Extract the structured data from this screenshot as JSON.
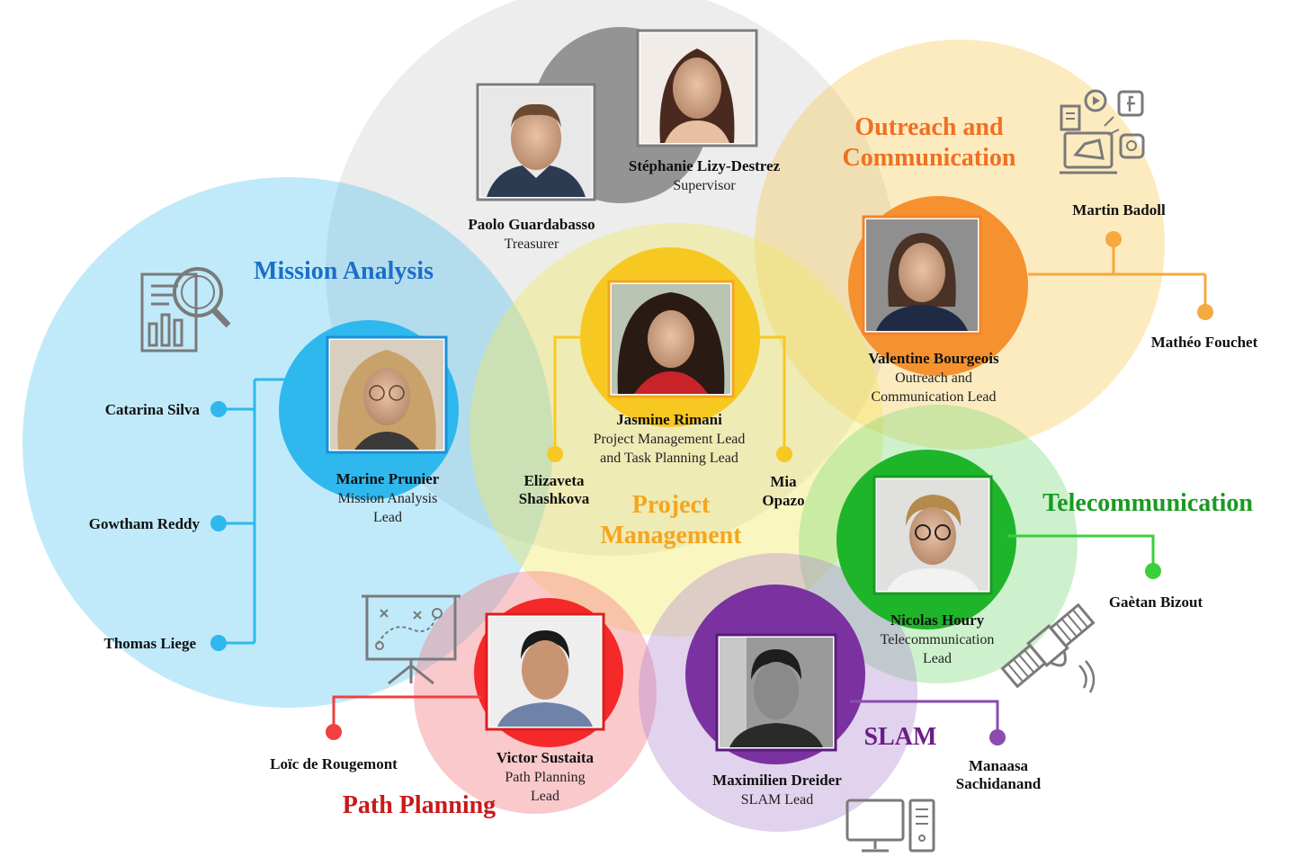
{
  "colors": {
    "mission": "#2fb8ee",
    "outreach": "#f5922f",
    "project": "#f8c822",
    "telecom": "#1fb52a",
    "path": "#f5292a",
    "slam": "#7b32a0",
    "supervisor": "#808080",
    "icon": "#7a7a7a"
  },
  "teams": {
    "mission": {
      "label": "Mission Analysis",
      "color": "#1a6fc9"
    },
    "outreach": {
      "label_line1": "Outreach and",
      "label_line2": "Communication",
      "color": "#f07020"
    },
    "project": {
      "label_line1": "Project",
      "label_line2": "Management",
      "color": "#f5a51e"
    },
    "telecom": {
      "label": "Telecommunication",
      "color": "#1a9a22"
    },
    "path": {
      "label": "Path Planning",
      "color": "#c81a1a"
    },
    "slam": {
      "label": "SLAM",
      "color": "#6a1d86"
    }
  },
  "leads": {
    "supervisor": {
      "name": "Stéphanie Lizy-Destrez",
      "role": "Supervisor"
    },
    "treasurer": {
      "name": "Paolo Guardabasso",
      "role": "Treasurer"
    },
    "mission": {
      "name": "Marine Prunier",
      "role_line1": "Mission Analysis",
      "role_line2": "Lead"
    },
    "project": {
      "name": "Jasmine Rimani",
      "role_line1": "Project Management Lead",
      "role_line2": "and Task Planning Lead"
    },
    "outreach": {
      "name": "Valentine Bourgeois",
      "role_line1": "Outreach and",
      "role_line2": "Communication Lead"
    },
    "telecom": {
      "name": "Nicolas Houry",
      "role_line1": "Telecommunication",
      "role_line2": "Lead"
    },
    "path": {
      "name": "Victor Sustaita",
      "role_line1": "Path Planning",
      "role_line2": "Lead"
    },
    "slam": {
      "name": "Maximilien Dreider",
      "role": "SLAM Lead"
    }
  },
  "members": {
    "mission": [
      "Catarina Silva",
      "Gowtham Reddy",
      "Thomas Liege"
    ],
    "project": {
      "left_line1": "Elizaveta",
      "left_line2": "Shashkova",
      "right_line1": "Mia",
      "right_line2": "Opazo"
    },
    "outreach": [
      "Martin Badoll",
      "Mathéo Fouchet"
    ],
    "telecom": [
      "Gaètan Bizout"
    ],
    "path": [
      "Loïc de Rougemont"
    ],
    "slam": {
      "line1": "Manaasa",
      "line2": "Sachidanand"
    }
  },
  "icons": {
    "mission": "report-magnifier-icon",
    "outreach": "megaphone-social-icon",
    "path": "strategy-board-icon",
    "telecom": "satellite-icon",
    "slam": "computer-icon"
  }
}
